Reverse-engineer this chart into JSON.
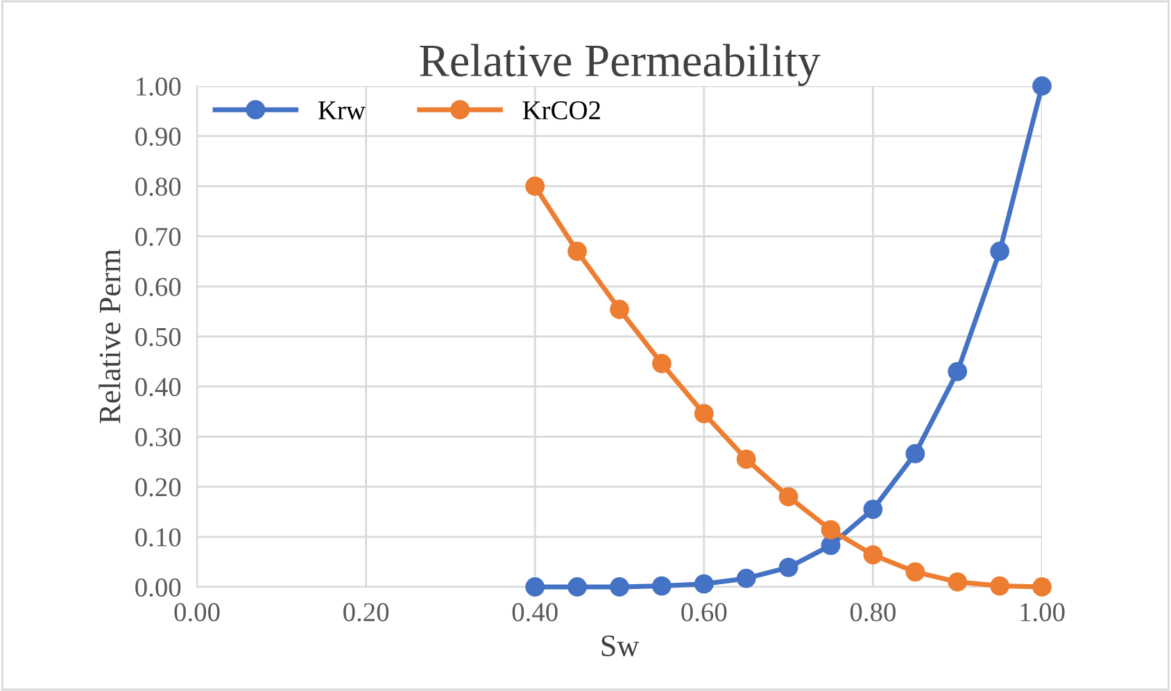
{
  "chart_data": {
    "type": "line",
    "title": "Relative Permeability",
    "xlabel": "Sw",
    "ylabel": "Relative Perm",
    "x": [
      0.4,
      0.45,
      0.5,
      0.55,
      0.6,
      0.65,
      0.7,
      0.75,
      0.8,
      0.85,
      0.9,
      0.95,
      1.0
    ],
    "series": [
      {
        "name": "Krw",
        "color": "#4472c4",
        "values": [
          0,
          0,
          0,
          0.002,
          0.006,
          0.017,
          0.039,
          0.083,
          0.155,
          0.266,
          0.43,
          0.67,
          1.0
        ]
      },
      {
        "name": "KrCO2",
        "color": "#ed7d31",
        "values": [
          0.8,
          0.67,
          0.554,
          0.446,
          0.346,
          0.255,
          0.18,
          0.114,
          0.064,
          0.03,
          0.01,
          0.002,
          0
        ]
      }
    ],
    "xlim": [
      0,
      1
    ],
    "xticks": [
      {
        "value": 0,
        "label": "0.00"
      },
      {
        "value": 0.2,
        "label": "0.20"
      },
      {
        "value": 0.4,
        "label": "0.40"
      },
      {
        "value": 0.6,
        "label": "0.60"
      },
      {
        "value": 0.8,
        "label": "0.80"
      },
      {
        "value": 1.0,
        "label": "1.00"
      }
    ],
    "ylim": [
      0,
      1
    ],
    "yticks": [
      {
        "value": 0,
        "label": "0.00"
      },
      {
        "value": 0.1,
        "label": "0.10"
      },
      {
        "value": 0.2,
        "label": "0.20"
      },
      {
        "value": 0.3,
        "label": "0.30"
      },
      {
        "value": 0.4,
        "label": "0.40"
      },
      {
        "value": 0.5,
        "label": "0.50"
      },
      {
        "value": 0.6,
        "label": "0.60"
      },
      {
        "value": 0.7,
        "label": "0.70"
      },
      {
        "value": 0.8,
        "label": "0.80"
      },
      {
        "value": 0.9,
        "label": "0.90"
      },
      {
        "value": 1.0,
        "label": "1.00"
      }
    ],
    "grid": true,
    "legend": "top",
    "marker": "circle",
    "line_style": "solid"
  }
}
